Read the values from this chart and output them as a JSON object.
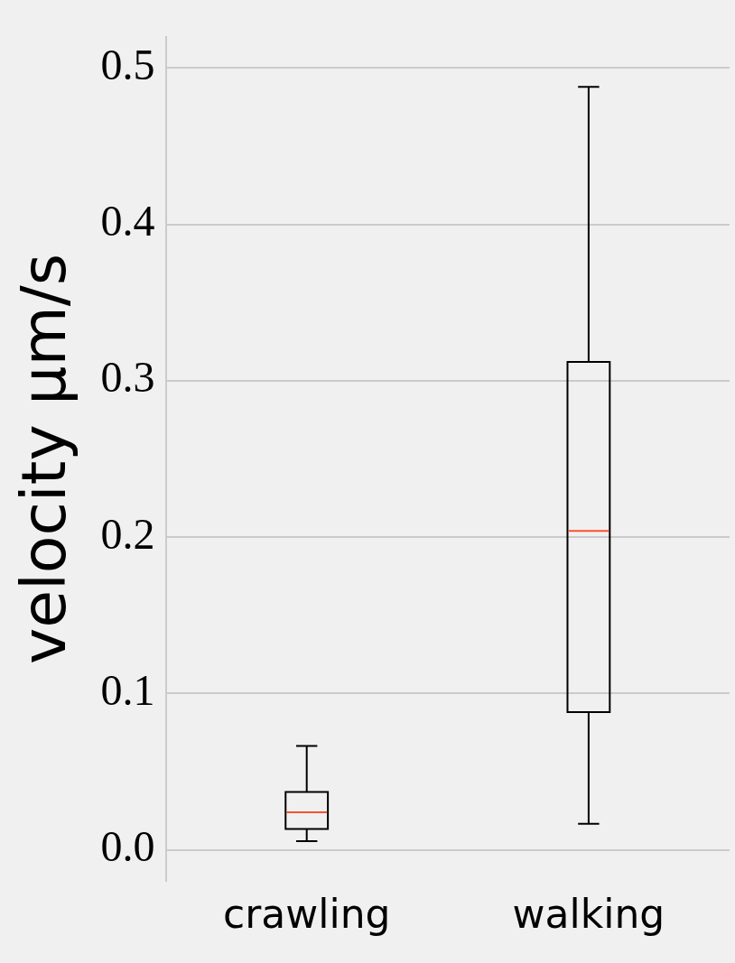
{
  "chart_data": {
    "type": "box",
    "ylabel": "velocity μm/s",
    "categories": [
      "crawling",
      "walking"
    ],
    "boxes": [
      {
        "low": 0.0055,
        "q1": 0.0133,
        "median": 0.024,
        "q3": 0.037,
        "high": 0.0664
      },
      {
        "low": 0.0166,
        "q1": 0.088,
        "median": 0.204,
        "q3": 0.312,
        "high": 0.488
      }
    ],
    "color": "#000000",
    "ylim": [
      -0.02,
      0.52
    ],
    "yticks": [
      {
        "value": 0,
        "label": "0.0"
      },
      {
        "value": 0.1,
        "label": "0.1"
      },
      {
        "value": 0.2,
        "label": "0.2"
      },
      {
        "value": 0.3,
        "label": "0.3"
      },
      {
        "value": 0.4,
        "label": "0.4"
      },
      {
        "value": 0.5,
        "label": "0.5"
      }
    ],
    "grid": "y"
  }
}
